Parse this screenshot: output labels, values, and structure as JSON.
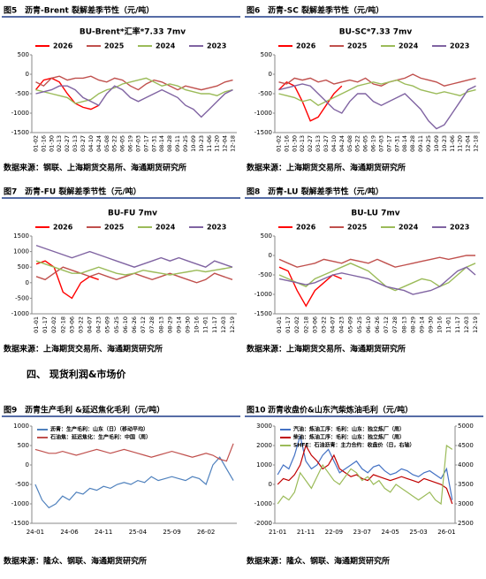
{
  "section_heading": "四、 现货利润&市场价",
  "chart_data": [
    {
      "type": "line",
      "label": "图5",
      "title": "沥青-Brent 裂解差季节性（元/吨）",
      "subtitle": "BU-Brent*汇率*7.33 7mv",
      "source": "数据来源：钢联、上海期货交易所、海通期货研究所",
      "categories": [
        "01-02",
        "01-16",
        "01-30",
        "02-13",
        "02-27",
        "03-13",
        "03-27",
        "04-10",
        "04-24",
        "05-08",
        "05-22",
        "06-05",
        "06-19",
        "07-03",
        "07-17",
        "07-31",
        "08-14",
        "08-28",
        "09-11",
        "09-25",
        "10-09",
        "10-23",
        "11-06",
        "11-20",
        "12-04",
        "12-18"
      ],
      "ylim": [
        -1500,
        500
      ],
      "yticks": [
        -1500,
        -1000,
        -500,
        0,
        500
      ],
      "series": [
        {
          "name": "2026",
          "color": "#ff0000",
          "values": [
            -400,
            -150,
            -100,
            -200,
            -500,
            -750,
            -850,
            -900,
            -800,
            null,
            null,
            null,
            null,
            null,
            null,
            null,
            null,
            null,
            null,
            null,
            null,
            null,
            null,
            null,
            null,
            null
          ]
        },
        {
          "name": "2025",
          "color": "#c0504d",
          "values": [
            -200,
            -300,
            -100,
            -50,
            -150,
            -100,
            -100,
            -50,
            -150,
            -200,
            -100,
            -150,
            -300,
            -400,
            -250,
            -150,
            -200,
            -300,
            -400,
            -300,
            -350,
            -400,
            -350,
            -300,
            -200,
            -150
          ]
        },
        {
          "name": "2024",
          "color": "#9bbb59",
          "values": [
            -400,
            -450,
            -500,
            -550,
            -600,
            -750,
            -700,
            -650,
            -500,
            -400,
            -350,
            -250,
            -200,
            -150,
            -100,
            -200,
            -300,
            -250,
            -300,
            -400,
            -450,
            -500,
            -500,
            -550,
            -450,
            -400
          ]
        },
        {
          "name": "2023",
          "color": "#8064a2",
          "values": [
            -500,
            -450,
            -400,
            -300,
            -300,
            -400,
            -600,
            -700,
            -800,
            -500,
            -300,
            -400,
            -600,
            -700,
            -600,
            -500,
            -400,
            -500,
            -600,
            -800,
            -900,
            -1100,
            -900,
            -700,
            -500,
            -400
          ]
        }
      ]
    },
    {
      "type": "line",
      "label": "图6",
      "title": "沥青-SC 裂解差季节性（元/吨）",
      "subtitle": "BU-SC*7.33 7mv",
      "source": "数据来源：上海期货交易所、海通期货研究所",
      "categories": [
        "01-02",
        "01-16",
        "01-30",
        "02-13",
        "02-27",
        "03-13",
        "03-27",
        "04-10",
        "04-24",
        "05-08",
        "05-22",
        "06-05",
        "06-19",
        "07-03",
        "07-17",
        "07-31",
        "08-14",
        "08-28",
        "09-11",
        "09-25",
        "10-09",
        "10-23",
        "11-06",
        "11-20",
        "12-04",
        "12-18"
      ],
      "ylim": [
        -1500,
        500
      ],
      "yticks": [
        -1500,
        -1000,
        -500,
        0,
        500
      ],
      "series": [
        {
          "name": "2026",
          "color": "#ff0000",
          "values": [
            -400,
            -200,
            -300,
            -700,
            -1200,
            -1100,
            -800,
            -500,
            -300,
            null,
            null,
            null,
            null,
            null,
            null,
            null,
            null,
            null,
            null,
            null,
            null,
            null,
            null,
            null,
            null,
            null
          ]
        },
        {
          "name": "2025",
          "color": "#c0504d",
          "values": [
            -200,
            -250,
            -100,
            -150,
            -100,
            -200,
            -150,
            -250,
            -200,
            -150,
            -200,
            -100,
            -250,
            -300,
            -200,
            -150,
            -100,
            0,
            -100,
            -150,
            -200,
            -300,
            -250,
            -200,
            -150,
            -100
          ]
        },
        {
          "name": "2024",
          "color": "#9bbb59",
          "values": [
            -500,
            -550,
            -600,
            -700,
            -650,
            -800,
            -700,
            -600,
            -500,
            -400,
            -300,
            -250,
            -200,
            -250,
            -200,
            -150,
            -250,
            -300,
            -400,
            -450,
            -500,
            -450,
            -500,
            -550,
            -450,
            -400
          ]
        },
        {
          "name": "2023",
          "color": "#8064a2",
          "values": [
            -400,
            -350,
            -300,
            -250,
            -300,
            -500,
            -700,
            -900,
            -1000,
            -700,
            -500,
            -500,
            -700,
            -800,
            -700,
            -600,
            -500,
            -700,
            -900,
            -1200,
            -1400,
            -1300,
            -1000,
            -700,
            -400,
            -300
          ]
        }
      ]
    },
    {
      "type": "line",
      "label": "图7",
      "title": "沥青-FU 裂解差季节性（元/吨）",
      "subtitle": "BU-FU 7mv",
      "source": "数据来源：上海期货交易所、海通期货研究所",
      "categories": [
        "01-01",
        "01-17",
        "02-02",
        "02-18",
        "03-06",
        "03-22",
        "04-07",
        "04-23",
        "05-09",
        "05-25",
        "06-10",
        "06-26",
        "07-12",
        "07-28",
        "08-13",
        "08-29",
        "09-14",
        "09-30",
        "10-16",
        "11-01",
        "11-17",
        "12-03",
        "12-19"
      ],
      "ylim": [
        -1000,
        1500
      ],
      "yticks": [
        -1000,
        -500,
        0,
        500,
        1000,
        1500
      ],
      "series": [
        {
          "name": "2026",
          "color": "#ff0000",
          "values": [
            600,
            700,
            500,
            -300,
            -500,
            0,
            200,
            100,
            null,
            null,
            null,
            null,
            null,
            null,
            null,
            null,
            null,
            null,
            null,
            null,
            null,
            null,
            null
          ]
        },
        {
          "name": "2025",
          "color": "#c0504d",
          "values": [
            200,
            100,
            300,
            500,
            400,
            300,
            200,
            300,
            200,
            100,
            200,
            300,
            200,
            100,
            200,
            300,
            200,
            100,
            0,
            100,
            300,
            200,
            100
          ]
        },
        {
          "name": "2024",
          "color": "#9bbb59",
          "values": [
            700,
            600,
            500,
            400,
            300,
            300,
            400,
            500,
            400,
            300,
            250,
            300,
            400,
            350,
            300,
            250,
            300,
            350,
            400,
            350,
            400,
            450,
            500
          ]
        },
        {
          "name": "2023",
          "color": "#8064a2",
          "values": [
            1200,
            1100,
            1000,
            900,
            800,
            900,
            1000,
            900,
            800,
            700,
            600,
            500,
            600,
            700,
            800,
            700,
            800,
            700,
            600,
            500,
            700,
            600,
            500
          ]
        }
      ]
    },
    {
      "type": "line",
      "label": "图8",
      "title": "沥青-LU 裂解差季节性（元/吨）",
      "subtitle": "BU-LU 7mv",
      "source": "数据来源：上海期货交易所、海通期货研究所",
      "categories": [
        "01-01",
        "01-17",
        "02-02",
        "02-18",
        "03-06",
        "03-22",
        "04-07",
        "04-23",
        "05-09",
        "05-25",
        "06-10",
        "06-26",
        "07-12",
        "07-28",
        "08-13",
        "08-29",
        "09-14",
        "09-30",
        "10-16",
        "11-01",
        "11-17",
        "12-03",
        "12-19"
      ],
      "ylim": [
        -1500,
        500
      ],
      "yticks": [
        -1500,
        -1000,
        -500,
        0,
        500
      ],
      "series": [
        {
          "name": "2026",
          "color": "#ff0000",
          "values": [
            -300,
            -400,
            -900,
            -1300,
            -900,
            -700,
            -500,
            -600,
            null,
            null,
            null,
            null,
            null,
            null,
            null,
            null,
            null,
            null,
            null,
            null,
            null,
            null,
            null
          ]
        },
        {
          "name": "2025",
          "color": "#c0504d",
          "values": [
            -100,
            -200,
            -300,
            -250,
            -200,
            -100,
            -150,
            -200,
            -100,
            -150,
            -200,
            -100,
            -200,
            -300,
            -250,
            -200,
            -150,
            -100,
            -50,
            -100,
            -50,
            0,
            0
          ]
        },
        {
          "name": "2024",
          "color": "#9bbb59",
          "values": [
            -500,
            -600,
            -700,
            -800,
            -600,
            -500,
            -400,
            -300,
            -200,
            -300,
            -400,
            -600,
            -800,
            -900,
            -800,
            -700,
            -600,
            -650,
            -800,
            -700,
            -500,
            -300,
            -200
          ]
        },
        {
          "name": "2023",
          "color": "#8064a2",
          "values": [
            -600,
            -650,
            -700,
            -750,
            -700,
            -600,
            -500,
            -450,
            -500,
            -550,
            -600,
            -700,
            -800,
            -850,
            -900,
            -1000,
            -950,
            -900,
            -800,
            -600,
            -400,
            -300,
            -500
          ]
        }
      ]
    },
    {
      "type": "line",
      "label": "图9",
      "title": "沥青生产毛利 &延迟焦化毛利（元/吨）",
      "source": "数据来源：隆众、钢联、海通期货研究所",
      "categories": [
        "24-01",
        null,
        null,
        null,
        null,
        "24-06",
        null,
        null,
        null,
        null,
        "24-11",
        null,
        null,
        null,
        null,
        "25-04",
        null,
        null,
        null,
        null,
        "25-09",
        null,
        null,
        null,
        null,
        "26-02",
        null,
        null,
        null,
        null
      ],
      "ylim": [
        -1500,
        1000
      ],
      "yticks": [
        -1500,
        -1000,
        -500,
        0,
        500,
        1000
      ],
      "series": [
        {
          "name": "沥青：生产毛利：山东（日）（移动平均）",
          "color": "#4f81bd",
          "values": [
            -500,
            -900,
            -1100,
            -1000,
            -800,
            -900,
            -700,
            -750,
            -600,
            -650,
            -550,
            -600,
            -500,
            -450,
            -500,
            -400,
            -450,
            -300,
            -400,
            -350,
            -300,
            -350,
            -400,
            -300,
            -350,
            -500,
            0,
            200,
            -100,
            -400
          ]
        },
        {
          "name": "石油焦：延迟焦化：生产毛利：中国（周）",
          "color": "#c0504d",
          "values": [
            400,
            350,
            300,
            300,
            350,
            300,
            250,
            300,
            350,
            400,
            350,
            300,
            350,
            400,
            350,
            300,
            250,
            200,
            250,
            300,
            350,
            300,
            250,
            200,
            250,
            300,
            250,
            150,
            100,
            550
          ]
        }
      ]
    },
    {
      "type": "line",
      "label": "图10",
      "title": "沥青收盘价&山东汽柴炼油毛利（元/吨）",
      "source": "数据来源：隆众、钢联、海通期货研究所",
      "categories": [
        "21-01",
        null,
        null,
        null,
        null,
        "21-11",
        null,
        null,
        null,
        null,
        "22-09",
        null,
        null,
        null,
        null,
        "23-07",
        null,
        null,
        null,
        null,
        "24-05",
        null,
        null,
        null,
        null,
        "25-03",
        null,
        null,
        null,
        null,
        "26-01",
        null
      ],
      "ylim": [
        -2000,
        3000
      ],
      "yticks": [
        -2000,
        -1000,
        0,
        1000,
        2000,
        3000
      ],
      "y2lim": [
        2500,
        5000
      ],
      "y2ticks": [
        2500,
        3000,
        3500,
        4000,
        4500,
        5000
      ],
      "series": [
        {
          "name": "汽油：炼油工序：毛利：山东：独立炼厂（周）",
          "color": "#4472c4",
          "values": [
            500,
            1000,
            800,
            1500,
            2500,
            1200,
            800,
            1000,
            1500,
            1800,
            1200,
            600,
            800,
            1000,
            1200,
            800,
            600,
            900,
            1000,
            700,
            500,
            600,
            800,
            700,
            500,
            400,
            600,
            700,
            500,
            300,
            800,
            -800
          ]
        },
        {
          "name": "柴油：炼油工序：毛利：山东：独立炼厂（周）",
          "color": "#c00000",
          "values": [
            0,
            300,
            200,
            500,
            1000,
            2000,
            1500,
            1200,
            800,
            1000,
            1500,
            800,
            600,
            400,
            500,
            300,
            200,
            500,
            400,
            300,
            200,
            300,
            400,
            300,
            200,
            100,
            300,
            200,
            100,
            0,
            -200,
            -1000
          ]
        },
        {
          "name": "SHFE：石油沥青：主力合约：收盘价（日，右轴）",
          "color": "#9bbb59",
          "axis": "y2",
          "values": [
            3000,
            3200,
            3100,
            3300,
            3800,
            3600,
            3400,
            3700,
            4000,
            3800,
            3600,
            3500,
            3700,
            3900,
            3800,
            3600,
            3700,
            3500,
            3600,
            3400,
            3300,
            3500,
            3400,
            3300,
            3200,
            3100,
            3200,
            3300,
            3100,
            3000,
            4500,
            4400
          ]
        }
      ]
    }
  ]
}
